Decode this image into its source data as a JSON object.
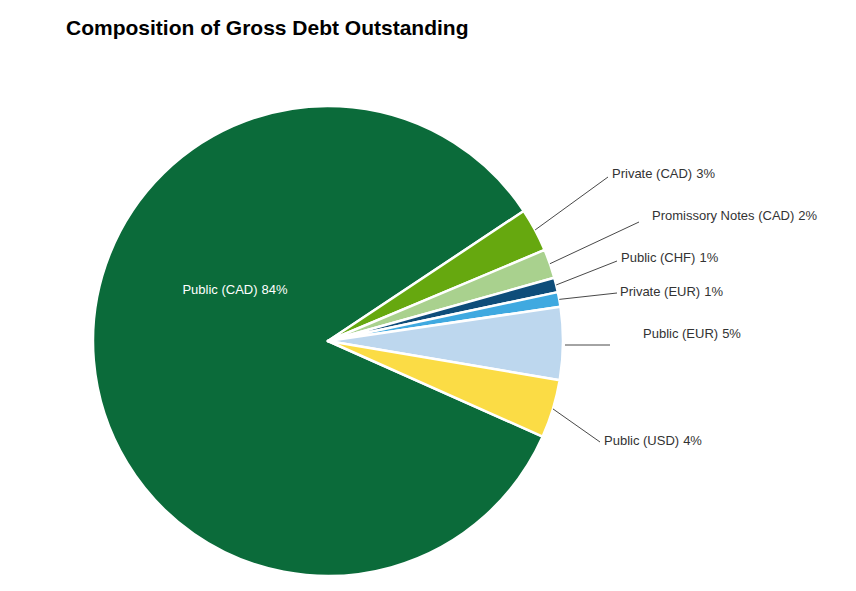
{
  "chart_data": {
    "type": "pie",
    "title": "Composition of Gross Debt Outstanding",
    "categories": [
      "Public (CAD)",
      "Private (CAD)",
      "Promissory Notes (CAD)",
      "Public (CHF)",
      "Private (EUR)",
      "Public (EUR)",
      "Public (USD)"
    ],
    "values": [
      84,
      3,
      2,
      1,
      1,
      5,
      4
    ],
    "value_labels": [
      "84%",
      "3%",
      "2%",
      "1%",
      "1%",
      "5%",
      "4%"
    ],
    "colors": [
      "#0b6b3a",
      "#66a80f",
      "#a9d18e",
      "#0e4d7a",
      "#3fa9e0",
      "#bdd7ee",
      "#fbdc45"
    ],
    "data_labels": true
  }
}
